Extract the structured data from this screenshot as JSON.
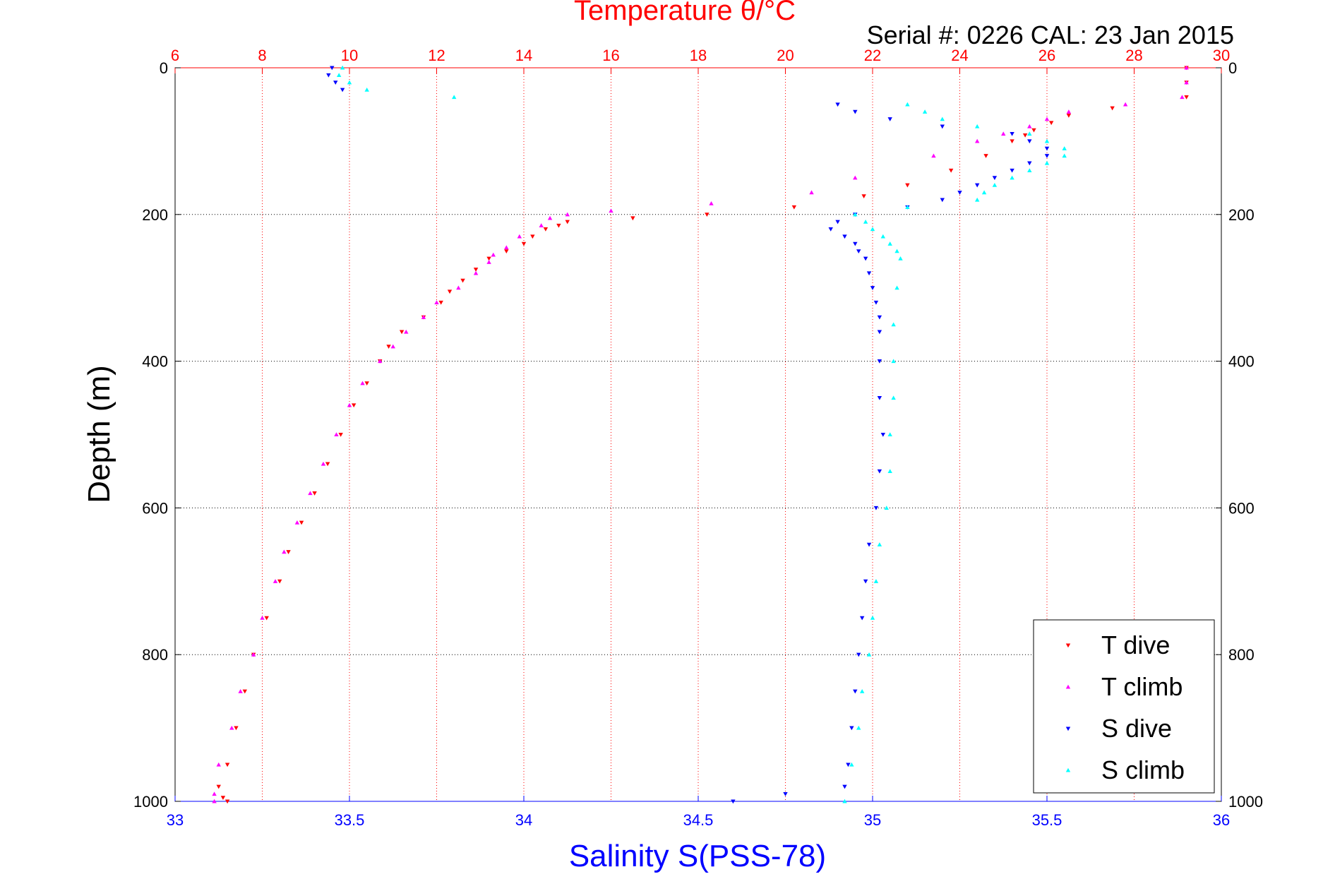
{
  "chart_data": {
    "type": "scatter",
    "title": "Temperature θ/°C",
    "subtitle": "Serial #: 0226  CAL: 23 Jan 2015",
    "xlabel": "Salinity S(PSS-78)",
    "ylabel": "Depth (m)",
    "x_bottom": {
      "range": [
        33,
        36
      ],
      "ticks": [
        33,
        33.5,
        34,
        34.5,
        35,
        35.5,
        36
      ],
      "tick_labels": [
        "33",
        "33.5",
        "34",
        "34.5",
        "35",
        "35.5",
        "36"
      ]
    },
    "x_top": {
      "range": [
        6,
        30
      ],
      "ticks": [
        6,
        8,
        10,
        12,
        14,
        16,
        18,
        20,
        22,
        24,
        26,
        28,
        30
      ],
      "tick_labels": [
        "6",
        "8",
        "10",
        "12",
        "14",
        "16",
        "18",
        "20",
        "22",
        "24",
        "26",
        "28",
        "30"
      ]
    },
    "y": {
      "range": [
        0,
        1000
      ],
      "reversed": true,
      "ticks": [
        0,
        200,
        400,
        600,
        800,
        1000
      ],
      "tick_labels": [
        "0",
        "200",
        "400",
        "600",
        "800",
        "1000"
      ]
    },
    "legend_position": "bottom-right",
    "grid": true,
    "series": [
      {
        "name": "T dive",
        "axis": "temperature",
        "color": "#ff0000",
        "marker": "triangle-down",
        "depth": [
          0,
          20,
          40,
          55,
          65,
          75,
          85,
          92,
          100,
          120,
          140,
          160,
          175,
          190,
          200,
          205,
          210,
          215,
          220,
          230,
          240,
          250,
          260,
          275,
          290,
          305,
          320,
          340,
          360,
          380,
          400,
          430,
          460,
          500,
          540,
          580,
          620,
          660,
          700,
          750,
          800,
          850,
          900,
          950,
          980,
          995,
          1000
        ],
        "values": [
          29.2,
          29.2,
          29.2,
          27.5,
          26.5,
          26.1,
          25.7,
          25.5,
          25.2,
          24.6,
          23.8,
          22.8,
          21.8,
          20.2,
          18.2,
          16.5,
          15.0,
          14.8,
          14.5,
          14.2,
          14.0,
          13.6,
          13.2,
          12.9,
          12.6,
          12.3,
          12.1,
          11.7,
          11.2,
          10.9,
          10.7,
          10.4,
          10.1,
          9.8,
          9.5,
          9.2,
          8.9,
          8.6,
          8.4,
          8.1,
          7.8,
          7.6,
          7.4,
          7.2,
          7.0,
          7.1,
          7.2
        ]
      },
      {
        "name": "T climb",
        "axis": "temperature",
        "color": "#ff00ff",
        "marker": "triangle-up",
        "depth": [
          0,
          20,
          40,
          50,
          60,
          70,
          80,
          90,
          100,
          120,
          150,
          170,
          185,
          195,
          200,
          205,
          215,
          230,
          245,
          255,
          265,
          280,
          300,
          320,
          340,
          360,
          380,
          400,
          430,
          460,
          500,
          540,
          580,
          620,
          660,
          700,
          750,
          800,
          850,
          900,
          950,
          990,
          1000
        ],
        "values": [
          29.2,
          29.2,
          29.1,
          27.8,
          26.5,
          26.0,
          25.6,
          25.0,
          24.4,
          23.4,
          21.6,
          20.6,
          18.3,
          16.0,
          15.0,
          14.6,
          14.4,
          13.9,
          13.6,
          13.3,
          13.2,
          12.9,
          12.5,
          12.0,
          11.7,
          11.3,
          11.0,
          10.7,
          10.3,
          10.0,
          9.7,
          9.4,
          9.1,
          8.8,
          8.5,
          8.3,
          8.0,
          7.8,
          7.5,
          7.3,
          7.0,
          6.9,
          6.9
        ]
      },
      {
        "name": "S dive",
        "axis": "salinity",
        "color": "#0000ff",
        "marker": "triangle-down",
        "depth": [
          0,
          10,
          20,
          30,
          50,
          60,
          70,
          80,
          90,
          100,
          110,
          120,
          130,
          140,
          150,
          160,
          170,
          180,
          190,
          200,
          210,
          220,
          230,
          240,
          250,
          260,
          280,
          300,
          320,
          340,
          360,
          400,
          450,
          500,
          550,
          600,
          650,
          700,
          750,
          800,
          850,
          900,
          950,
          980,
          990,
          1000
        ],
        "values": [
          33.45,
          33.44,
          33.46,
          33.48,
          34.9,
          34.95,
          35.05,
          35.2,
          35.4,
          35.45,
          35.5,
          35.5,
          35.45,
          35.4,
          35.35,
          35.3,
          35.25,
          35.2,
          35.1,
          34.95,
          34.9,
          34.88,
          34.92,
          34.95,
          34.96,
          34.98,
          34.99,
          35.0,
          35.01,
          35.02,
          35.02,
          35.02,
          35.02,
          35.03,
          35.02,
          35.01,
          34.99,
          34.98,
          34.97,
          34.96,
          34.95,
          34.94,
          34.93,
          34.92,
          34.75,
          34.6
        ]
      },
      {
        "name": "S climb",
        "axis": "salinity",
        "color": "#00ffff",
        "marker": "triangle-up",
        "depth": [
          0,
          10,
          20,
          30,
          40,
          50,
          60,
          70,
          80,
          90,
          100,
          110,
          120,
          130,
          140,
          150,
          160,
          170,
          180,
          190,
          200,
          210,
          220,
          230,
          240,
          250,
          260,
          300,
          350,
          400,
          450,
          500,
          550,
          600,
          650,
          700,
          750,
          800,
          850,
          900,
          950,
          1000
        ],
        "values": [
          33.48,
          33.47,
          33.5,
          33.55,
          33.8,
          35.1,
          35.15,
          35.2,
          35.3,
          35.45,
          35.5,
          35.55,
          35.55,
          35.5,
          35.45,
          35.4,
          35.35,
          35.32,
          35.3,
          35.1,
          34.95,
          34.98,
          35.0,
          35.03,
          35.05,
          35.07,
          35.08,
          35.07,
          35.06,
          35.06,
          35.06,
          35.05,
          35.05,
          35.04,
          35.02,
          35.01,
          35.0,
          34.99,
          34.97,
          34.96,
          34.94,
          34.92
        ]
      }
    ]
  }
}
